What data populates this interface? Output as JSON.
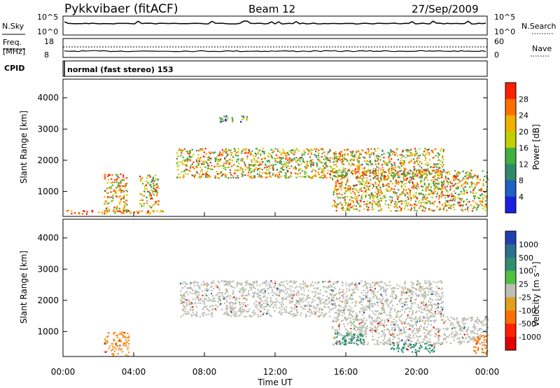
{
  "header": {
    "radar": "Pykkvibaer (fitACF)",
    "beam": "Beam 12",
    "date": "27/Sep/2009"
  },
  "panel_nsky": {
    "left_label": "N.Sky",
    "right_label": "N.Search",
    "ticks_left": [
      "10^5",
      "10^0"
    ],
    "ticks_right": [
      "10^5",
      "10^0"
    ]
  },
  "panel_freq": {
    "left_label_1": "Freq.",
    "left_label_2": "[MHz]",
    "right_label": "Nave",
    "ticks_left": [
      "18",
      "8"
    ],
    "ticks_right": [
      "60",
      "0"
    ]
  },
  "cpid": {
    "label": "CPID",
    "text": "normal (fast stereo) 153"
  },
  "chart_data": [
    {
      "type": "heatmap",
      "name": "power",
      "ylabel": "Slant Range [km]",
      "ylim": [
        200,
        4600
      ],
      "yticks": [
        1000,
        2000,
        3000,
        4000
      ],
      "colorbar_label": "Power [dB]",
      "colorbar_ticks": [
        4,
        8,
        12,
        16,
        20,
        24,
        28
      ],
      "colorbar_colors": [
        "#1a20e0",
        "#2060c0",
        "#2f8a6a",
        "#40b040",
        "#c0d000",
        "#f0b000",
        "#ff7000",
        "#ff2000"
      ],
      "echo_bands": [
        {
          "t0": 0.2,
          "t1": 5.8,
          "r0": 300,
          "r1": 420,
          "level": 0.85
        },
        {
          "t0": 2.3,
          "t1": 3.6,
          "r0": 350,
          "r1": 1600,
          "level": 0.7
        },
        {
          "t0": 4.3,
          "t1": 5.4,
          "r0": 500,
          "r1": 1550,
          "level": 0.6
        },
        {
          "t0": 6.4,
          "t1": 21.5,
          "r0": 1450,
          "r1": 2400,
          "level": 0.6
        },
        {
          "t0": 15.2,
          "t1": 24.0,
          "r0": 400,
          "r1": 1700,
          "level": 0.65
        },
        {
          "t0": 8.8,
          "t1": 10.5,
          "r0": 3250,
          "r1": 3450,
          "level": 0.35
        }
      ]
    },
    {
      "type": "heatmap",
      "name": "velocity",
      "ylabel": "Slant Range [km]",
      "ylim": [
        200,
        4600
      ],
      "yticks": [
        1000,
        2000,
        3000,
        4000
      ],
      "xlabel": "Time UT",
      "xticks": [
        "00:00",
        "04:00",
        "08:00",
        "12:00",
        "16:00",
        "20:00",
        "00:00"
      ],
      "colorbar_label": "Velocity [m s⁻¹]",
      "colorbar_ticks": [
        "1000",
        "500",
        "100",
        "25",
        "-25",
        "-100",
        "-500",
        "-1000"
      ],
      "colorbar_colors": [
        "#2040b0",
        "#2e6e8e",
        "#2f8f6f",
        "#50c040",
        "#bebeb6",
        "#e0a020",
        "#ff7000",
        "#ff2000",
        "#e00000"
      ],
      "echo_bands": [
        {
          "t0": 6.6,
          "t1": 21.5,
          "r0": 1500,
          "r1": 2650,
          "color": "#bebeb6"
        },
        {
          "t0": 15.2,
          "t1": 24.0,
          "r0": 600,
          "r1": 1500,
          "color": "#bebeb6"
        },
        {
          "t0": 2.3,
          "t1": 3.7,
          "r0": 250,
          "r1": 1000,
          "color": "#ff9020"
        },
        {
          "t0": 15.3,
          "t1": 17.0,
          "r0": 600,
          "r1": 1000,
          "color": "#2f8f6f"
        },
        {
          "t0": 18.5,
          "t1": 21.0,
          "r0": 350,
          "r1": 650,
          "color": "#2f8f6f"
        },
        {
          "t0": 23.2,
          "t1": 24.0,
          "r0": 300,
          "r1": 900,
          "color": "#ff7000"
        }
      ]
    }
  ]
}
